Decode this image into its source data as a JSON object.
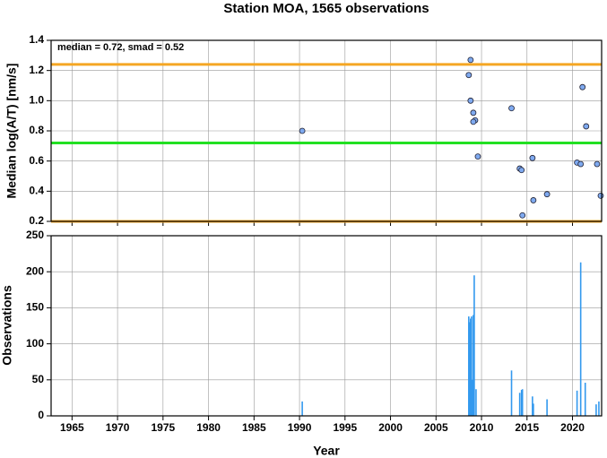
{
  "chart_data": [
    {
      "type": "scatter",
      "title": "Station MOA, 1565 observations",
      "ylabel": "Median log(A/T) [nm/s]",
      "annotation": "median = 0.72, smad = 0.52",
      "x": [
        1990.3,
        2008.8,
        2008.6,
        2008.8,
        2009.1,
        2009.3,
        2009.1,
        2009.6,
        2013.3,
        2014.2,
        2014.4,
        2014.5,
        2015.6,
        2015.7,
        2017.2,
        2020.5,
        2020.9,
        2021.1,
        2021.5,
        2022.7,
        2023.1
      ],
      "values": [
        0.8,
        1.27,
        1.17,
        1.0,
        0.92,
        0.87,
        0.86,
        0.63,
        0.95,
        0.55,
        0.54,
        0.24,
        0.62,
        0.34,
        0.38,
        0.59,
        0.58,
        1.09,
        0.83,
        0.58,
        0.37
      ],
      "color": "#7faaf0",
      "hlines": [
        {
          "value": 1.24,
          "color": "#f5a623"
        },
        {
          "value": 0.72,
          "color": "#22e022"
        },
        {
          "value": 0.2,
          "color": "#f5a623"
        }
      ],
      "xlim": [
        1962.7,
        2023.2
      ],
      "xticks": [
        1965,
        1970,
        1975,
        1980,
        1985,
        1990,
        1995,
        2000,
        2005,
        2010,
        2015,
        2020
      ],
      "ylim": [
        0.2,
        1.4
      ],
      "yticks": [
        {
          "value": 0.2,
          "label": "0.2"
        },
        {
          "value": 0.4,
          "label": "0.4"
        },
        {
          "value": 0.6,
          "label": "0.6"
        },
        {
          "value": 0.8,
          "label": "0.8"
        },
        {
          "value": 1.0,
          "label": "1.0"
        },
        {
          "value": 1.2,
          "label": "1.2"
        },
        {
          "value": 1.4,
          "label": "1.4"
        }
      ],
      "grid": true
    },
    {
      "type": "bar",
      "xlabel": "Year",
      "ylabel": "Observations",
      "x": [
        1990.3,
        2008.6,
        2008.7,
        2008.8,
        2008.9,
        2009.0,
        2009.1,
        2009.2,
        2009.4,
        2013.3,
        2014.2,
        2014.4,
        2014.5,
        2015.6,
        2015.7,
        2017.2,
        2020.5,
        2020.9,
        2021.4,
        2022.6,
        2022.9
      ],
      "values": [
        20,
        138,
        130,
        135,
        138,
        50,
        140,
        195,
        37,
        63,
        32,
        36,
        37,
        27,
        17,
        23,
        35,
        213,
        46,
        16,
        20
      ],
      "color": "#3399ee",
      "xlim": [
        1962.7,
        2023.2
      ],
      "xticks": [
        1965,
        1970,
        1975,
        1980,
        1985,
        1990,
        1995,
        2000,
        2005,
        2010,
        2015,
        2020
      ],
      "ylim": [
        0,
        250
      ],
      "yticks": [
        0,
        50,
        100,
        150,
        200,
        250
      ],
      "grid": true
    }
  ]
}
